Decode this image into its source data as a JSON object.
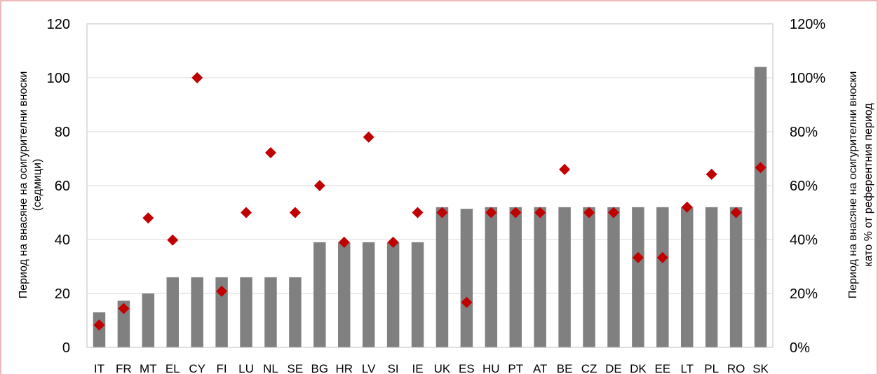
{
  "chart_data": {
    "type": "bar",
    "categories": [
      "IT",
      "FR",
      "MT",
      "EL",
      "CY",
      "FI",
      "LU",
      "NL",
      "SE",
      "BG",
      "HR",
      "LV",
      "SI",
      "IE",
      "UK",
      "ES",
      "HU",
      "PT",
      "AT",
      "BE",
      "CZ",
      "DE",
      "DK",
      "EE",
      "LT",
      "PL",
      "RO",
      "SK"
    ],
    "series": [
      {
        "kind": "bar",
        "axis": "left",
        "color": "#808080",
        "values": [
          13,
          17.3,
          20,
          26,
          26,
          26,
          26,
          26,
          26,
          39,
          39,
          39,
          39,
          39,
          52,
          51.4,
          52,
          52,
          52,
          52,
          52,
          52,
          52,
          52,
          52,
          52,
          52,
          104
        ]
      },
      {
        "kind": "marker",
        "marker": "diamond",
        "axis": "right",
        "color": "#C00000",
        "values": [
          8.3,
          14.4,
          48,
          39.8,
          100,
          20.8,
          50,
          72.2,
          50,
          60,
          39,
          78,
          39,
          50,
          50,
          16.7,
          50,
          50,
          50,
          66,
          50,
          50,
          33.3,
          33.3,
          52,
          64.2,
          50,
          66.7
        ]
      }
    ],
    "ylabel": [
      "Период на внасяне на осигурителни вноски",
      "(седмици)"
    ],
    "y2label": [
      "Период на внасяне на осигурителни вноски",
      "като % от референтния период"
    ],
    "ylim": [
      0,
      120
    ],
    "yticks": [
      0,
      20,
      40,
      60,
      80,
      100,
      120
    ],
    "y2lim": [
      0,
      120
    ],
    "y2ticks": [
      "0%",
      "20%",
      "40%",
      "60%",
      "80%",
      "100%",
      "120%"
    ],
    "grid": true,
    "colors": {
      "bars": "#808080",
      "markers": "#C00000",
      "grid": "#D9D9D9",
      "border": "#E8A0A0"
    }
  }
}
